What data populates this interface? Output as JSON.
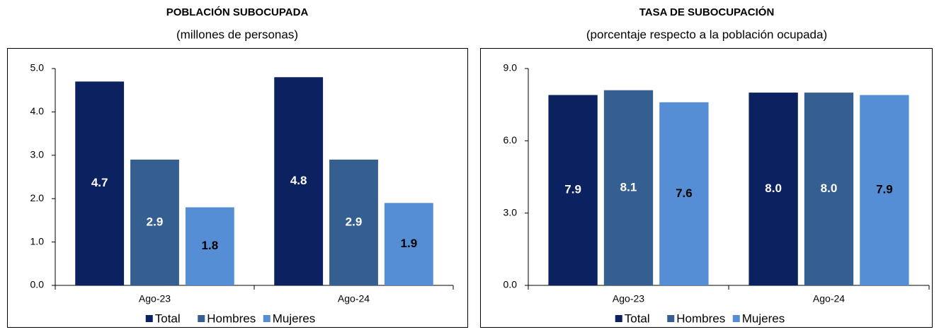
{
  "chart_data": [
    {
      "type": "bar",
      "title": "POBLACIÓN SUBOCUPADA",
      "subtitle": "(millones de personas)",
      "categories": [
        "Ago-23",
        "Ago-24"
      ],
      "series": [
        {
          "name": "Total",
          "color": "#0c2160",
          "values": [
            4.7,
            4.8
          ]
        },
        {
          "name": "Hombres",
          "color": "#355f91",
          "values": [
            2.9,
            2.9
          ]
        },
        {
          "name": "Mujeres",
          "color": "#558ed5",
          "values": [
            1.8,
            1.9
          ]
        }
      ],
      "ylim": [
        0,
        5
      ],
      "yticks": [
        {
          "value": 0,
          "label": "0.0"
        },
        {
          "value": 1,
          "label": "1.0"
        },
        {
          "value": 2,
          "label": "2.0"
        },
        {
          "value": 3,
          "label": "3.0"
        },
        {
          "value": 4,
          "label": "4.0"
        },
        {
          "value": 5,
          "label": "5.0"
        }
      ],
      "legend": "bottom"
    },
    {
      "type": "bar",
      "title": "TASA DE SUBOCUPACIÓN",
      "subtitle": "(porcentaje respecto a la población ocupada)",
      "categories": [
        "Ago-23",
        "Ago-24"
      ],
      "series": [
        {
          "name": "Total",
          "color": "#0c2160",
          "values": [
            7.9,
            8.0
          ],
          "value_labels": [
            "7.9",
            "8.0"
          ]
        },
        {
          "name": "Hombres",
          "color": "#355f91",
          "values": [
            8.1,
            8.0
          ],
          "value_labels": [
            "8.1",
            "8.0"
          ]
        },
        {
          "name": "Mujeres",
          "color": "#558ed5",
          "values": [
            7.6,
            7.9
          ],
          "value_labels": [
            "7.6",
            "7.9"
          ]
        }
      ],
      "ylim": [
        0,
        9
      ],
      "yticks": [
        {
          "value": 0,
          "label": "0.0"
        },
        {
          "value": 3,
          "label": "3.0"
        },
        {
          "value": 6,
          "label": "6.0"
        },
        {
          "value": 9,
          "label": "9.0"
        }
      ],
      "legend": "bottom"
    }
  ]
}
